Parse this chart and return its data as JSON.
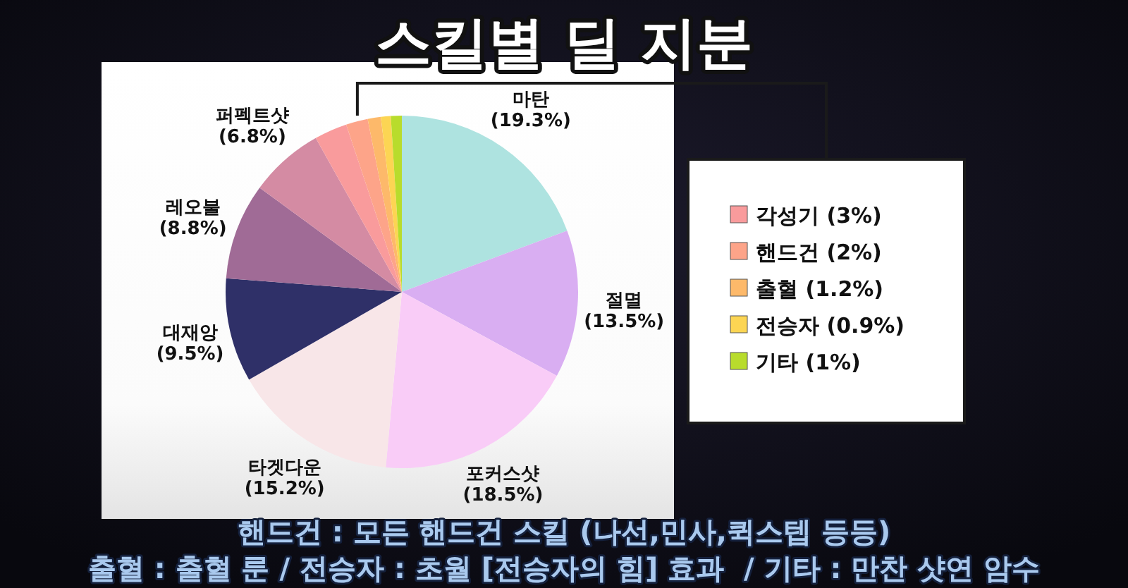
{
  "chart_data": {
    "type": "pie",
    "title": "스킬별 딜 지분",
    "categories": [
      "마탄",
      "절멸",
      "포커스샷",
      "타겟다운",
      "대재앙",
      "레오불",
      "퍼펙트샷",
      "각성기",
      "핸드건",
      "출혈",
      "전승자",
      "기타"
    ],
    "values": [
      19.3,
      13.5,
      18.5,
      15.2,
      9.5,
      8.8,
      6.8,
      3,
      2,
      1.2,
      0.9,
      1
    ],
    "value_labels": [
      "(19.3%)",
      "(13.5%)",
      "(18.5%)",
      "(15.2%)",
      "(9.5%)",
      "(8.8%)",
      "(6.8%)",
      "(3%)",
      "(2%)",
      "(1.2%)",
      "(0.9%)",
      "(1%)"
    ],
    "colors": [
      "#aee3e0",
      "#d9aef2",
      "#f9ccf7",
      "#f8e6e8",
      "#2f3068",
      "#a06b96",
      "#d48ba3",
      "#f99b9c",
      "#fda489",
      "#fdb96a",
      "#fcd553",
      "#b8dc2c"
    ],
    "legend": "right",
    "annotations": [
      "핸드건 : 모든 핸드건 스킬 (나선,민사,퀵스텝 등등)",
      "출혈 : 출혈 룬 / 전승자 : 초월 [전승자의 힘] 효과  / 기타 : 만찬 샷연 암수"
    ]
  }
}
